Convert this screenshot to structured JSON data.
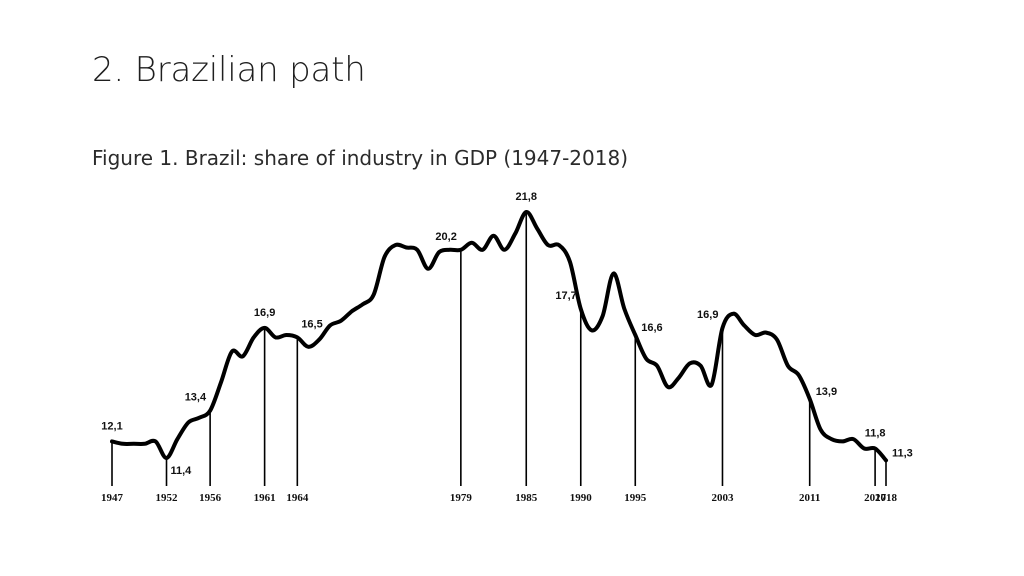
{
  "slide": {
    "title": "2. Brazilian path",
    "caption": "Figure 1. Brazil: share of industry in GDP (1947-2018)"
  },
  "chart_data": {
    "type": "line",
    "title": "",
    "xlabel": "",
    "ylabel": "",
    "xlim": [
      1947,
      2018
    ],
    "ylim": [
      10,
      22.5
    ],
    "grid": false,
    "legend": "none",
    "line_color": "#000000",
    "x": [
      1947,
      1948,
      1949,
      1950,
      1951,
      1952,
      1953,
      1954,
      1955,
      1956,
      1957,
      1958,
      1959,
      1960,
      1961,
      1962,
      1963,
      1964,
      1965,
      1966,
      1967,
      1968,
      1969,
      1970,
      1971,
      1972,
      1973,
      1974,
      1975,
      1976,
      1977,
      1978,
      1979,
      1980,
      1981,
      1982,
      1983,
      1984,
      1985,
      1986,
      1987,
      1988,
      1989,
      1990,
      1991,
      1992,
      1993,
      1994,
      1995,
      1996,
      1997,
      1998,
      1999,
      2000,
      2001,
      2002,
      2003,
      2004,
      2005,
      2006,
      2007,
      2008,
      2009,
      2010,
      2011,
      2012,
      2013,
      2014,
      2015,
      2016,
      2017,
      2018
    ],
    "values": [
      12.1,
      12.0,
      12.0,
      12.0,
      12.1,
      11.4,
      12.2,
      12.9,
      13.1,
      13.4,
      14.6,
      15.9,
      15.7,
      16.5,
      16.9,
      16.5,
      16.6,
      16.5,
      16.1,
      16.4,
      17.0,
      17.2,
      17.6,
      17.9,
      18.3,
      19.9,
      20.4,
      20.3,
      20.2,
      19.4,
      20.1,
      20.2,
      20.2,
      20.5,
      20.2,
      20.8,
      20.2,
      20.9,
      21.8,
      21.1,
      20.4,
      20.4,
      19.7,
      17.7,
      16.8,
      17.4,
      19.2,
      17.7,
      16.6,
      15.6,
      15.3,
      14.4,
      14.8,
      15.4,
      15.3,
      14.5,
      16.9,
      17.5,
      17.0,
      16.6,
      16.7,
      16.4,
      15.3,
      14.9,
      13.9,
      12.6,
      12.2,
      12.1,
      12.2,
      11.8,
      11.8,
      11.3
    ],
    "annotations": [
      {
        "x": 1947,
        "label": "12,1",
        "year": "1947",
        "pos": "above"
      },
      {
        "x": 1952,
        "label": "11,4",
        "year": "1952",
        "pos": "below-right"
      },
      {
        "x": 1956,
        "label": "13,4",
        "year": "1956",
        "pos": "above-left"
      },
      {
        "x": 1961,
        "label": "16,9",
        "year": "1961",
        "pos": "above"
      },
      {
        "x": 1964,
        "label": "16,5",
        "year": "1964",
        "pos": "above-right"
      },
      {
        "x": 1979,
        "label": "20,2",
        "year": "1979",
        "pos": "above-left"
      },
      {
        "x": 1985,
        "label": "21,8",
        "year": "1985",
        "pos": "above"
      },
      {
        "x": 1990,
        "label": "17,7",
        "year": "1990",
        "pos": "above-left"
      },
      {
        "x": 1995,
        "label": "16,6",
        "year": "1995",
        "pos": "right"
      },
      {
        "x": 2003,
        "label": "16,9",
        "year": "2003",
        "pos": "above-left"
      },
      {
        "x": 2011,
        "label": "13,9",
        "year": "2011",
        "pos": "right"
      },
      {
        "x": 2017,
        "label": "11,8",
        "year": "2017",
        "pos": "above"
      },
      {
        "x": 2018,
        "label": "11,3",
        "year": "2018",
        "pos": "right"
      }
    ]
  }
}
